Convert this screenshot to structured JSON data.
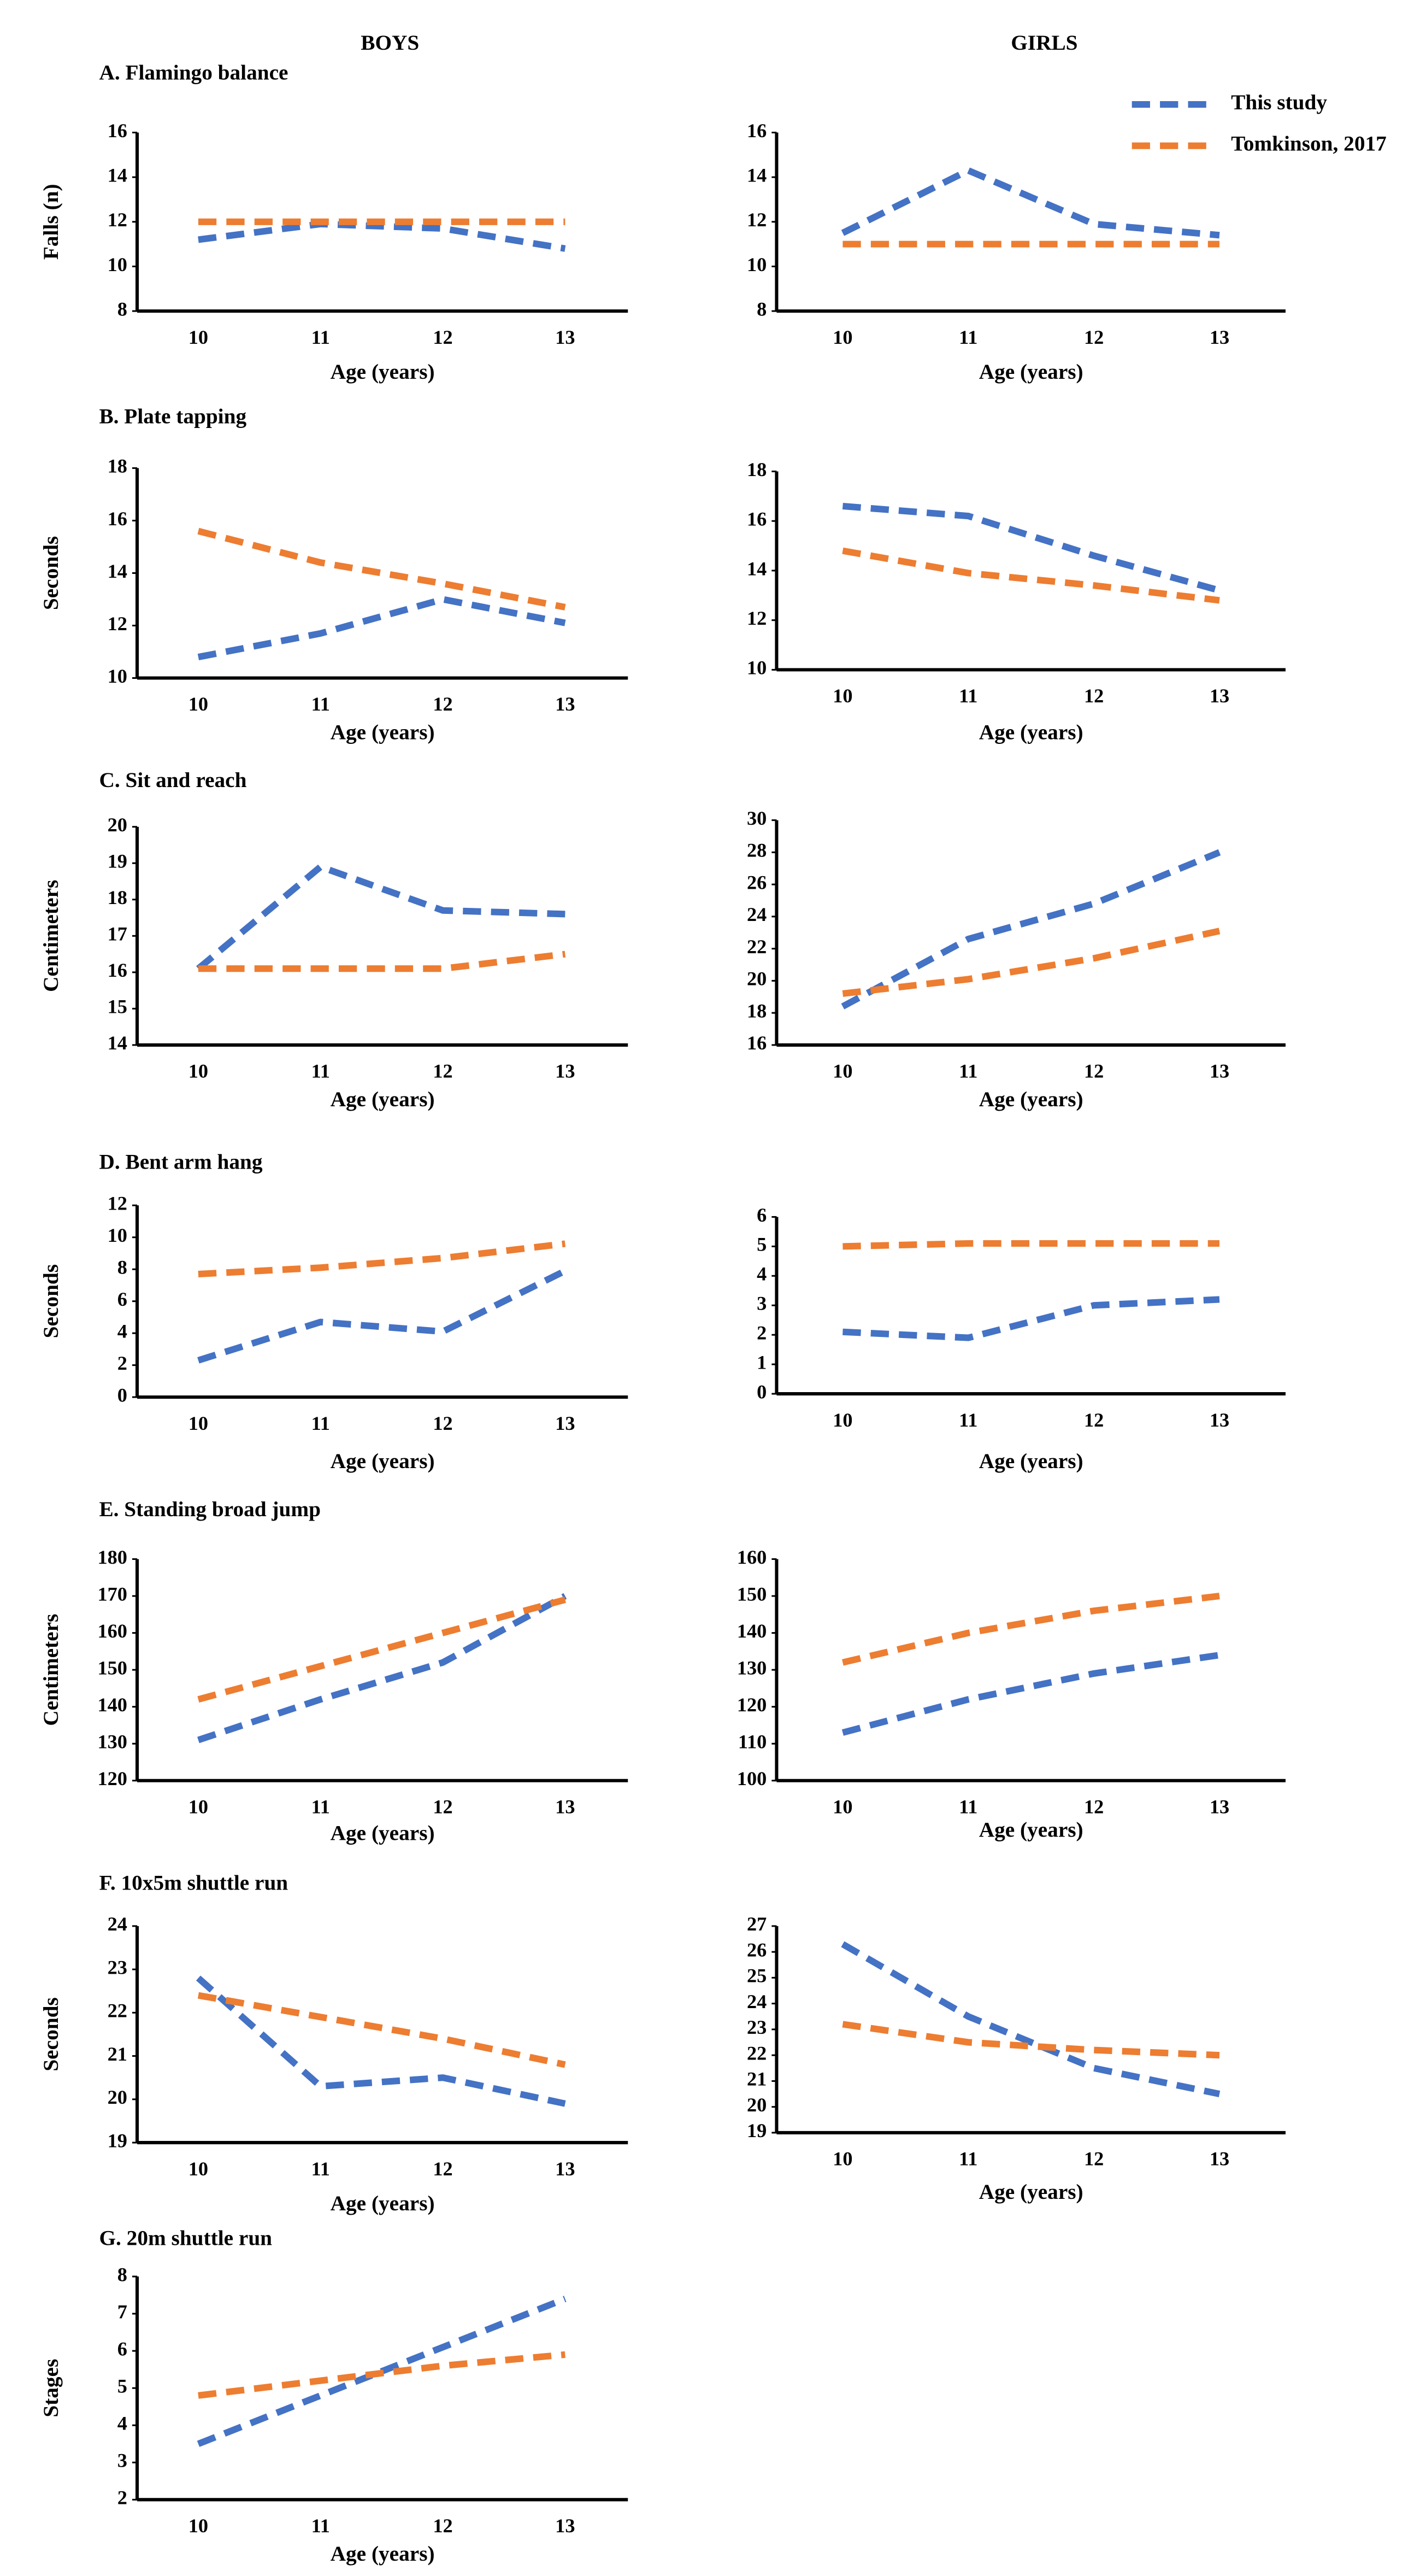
{
  "column_headers": [
    "BOYS",
    "GIRLS"
  ],
  "chart_data": [
    {
      "type": "line",
      "title": "A. Flamingo balance",
      "y_label": "Falls (n)",
      "x_label": "Age (years)",
      "categories": [
        "10",
        "11",
        "12",
        "13"
      ],
      "ylim": [
        8,
        16
      ],
      "yticks": [
        8,
        10,
        12,
        14,
        16
      ],
      "series": [
        {
          "color": "#4472c4",
          "values": [
            11.2,
            11.9,
            11.7,
            10.8
          ]
        },
        {
          "color": "#ed7d31",
          "values": [
            12,
            12,
            12,
            12
          ]
        }
      ]
    },
    {
      "type": "line",
      "x_label": "Age (years)",
      "categories": [
        "10",
        "11",
        "12",
        "13"
      ],
      "ylim": [
        8,
        16
      ],
      "yticks": [
        8,
        10,
        12,
        14,
        16
      ],
      "legend": "upper right",
      "series": [
        {
          "name": "This study",
          "color": "#4472c4",
          "values": [
            11.5,
            14.3,
            11.9,
            11.4
          ]
        },
        {
          "name": "Tomkinson, 2017",
          "color": "#ed7d31",
          "values": [
            11,
            11,
            11,
            11
          ]
        }
      ]
    },
    {
      "type": "line",
      "title": "B. Plate tapping",
      "y_label": "Seconds",
      "x_label": "Age (years)",
      "categories": [
        "10",
        "11",
        "12",
        "13"
      ],
      "ylim": [
        10,
        18
      ],
      "yticks": [
        10,
        12,
        14,
        16,
        18
      ],
      "series": [
        {
          "color": "#4472c4",
          "values": [
            10.8,
            11.7,
            13.0,
            12.1
          ]
        },
        {
          "color": "#ed7d31",
          "values": [
            15.6,
            14.4,
            13.6,
            12.7
          ]
        }
      ]
    },
    {
      "type": "line",
      "x_label": "Age (years)",
      "categories": [
        "10",
        "11",
        "12",
        "13"
      ],
      "ylim": [
        10,
        18
      ],
      "yticks": [
        10,
        12,
        14,
        16,
        18
      ],
      "series": [
        {
          "color": "#4472c4",
          "values": [
            16.6,
            16.2,
            14.6,
            13.2
          ]
        },
        {
          "color": "#ed7d31",
          "values": [
            14.8,
            13.9,
            13.4,
            12.8
          ]
        }
      ]
    },
    {
      "type": "line",
      "title": "C. Sit and reach",
      "y_label": "Centimeters",
      "x_label": "Age (years)",
      "categories": [
        "10",
        "11",
        "12",
        "13"
      ],
      "ylim": [
        14,
        20
      ],
      "yticks": [
        14,
        15,
        16,
        17,
        18,
        19,
        20
      ],
      "series": [
        {
          "color": "#4472c4",
          "values": [
            16.1,
            18.9,
            17.7,
            17.6
          ]
        },
        {
          "color": "#ed7d31",
          "values": [
            16.1,
            16.1,
            16.1,
            16.5
          ]
        }
      ]
    },
    {
      "type": "line",
      "x_label": "Age (years)",
      "categories": [
        "10",
        "11",
        "12",
        "13"
      ],
      "ylim": [
        16,
        30
      ],
      "yticks": [
        16,
        18,
        20,
        22,
        24,
        26,
        28,
        30
      ],
      "series": [
        {
          "color": "#4472c4",
          "values": [
            18.4,
            22.6,
            24.8,
            28.0
          ]
        },
        {
          "color": "#ed7d31",
          "values": [
            19.2,
            20.1,
            21.4,
            23.1
          ]
        }
      ]
    },
    {
      "type": "line",
      "title": "D. Bent arm hang",
      "y_label": "Seconds",
      "x_label": "Age (years)",
      "categories": [
        "10",
        "11",
        "12",
        "13"
      ],
      "ylim": [
        0,
        12
      ],
      "yticks": [
        0,
        2,
        4,
        6,
        8,
        10,
        12
      ],
      "series": [
        {
          "color": "#4472c4",
          "values": [
            2.3,
            4.7,
            4.1,
            7.9
          ]
        },
        {
          "color": "#ed7d31",
          "values": [
            7.7,
            8.1,
            8.7,
            9.6
          ]
        }
      ]
    },
    {
      "type": "line",
      "x_label": "Age (years)",
      "categories": [
        "10",
        "11",
        "12",
        "13"
      ],
      "ylim": [
        0,
        6
      ],
      "yticks": [
        0,
        1,
        2,
        3,
        4,
        5,
        6
      ],
      "series": [
        {
          "color": "#4472c4",
          "values": [
            2.1,
            1.9,
            3.0,
            3.2
          ]
        },
        {
          "color": "#ed7d31",
          "values": [
            5.0,
            5.1,
            5.1,
            5.1
          ]
        }
      ]
    },
    {
      "type": "line",
      "title": "E. Standing broad jump",
      "y_label": "Centimeters",
      "x_label": "Age (years)",
      "categories": [
        "10",
        "11",
        "12",
        "13"
      ],
      "ylim": [
        120,
        180
      ],
      "yticks": [
        120,
        130,
        140,
        150,
        160,
        170,
        180
      ],
      "series": [
        {
          "color": "#4472c4",
          "values": [
            131,
            142,
            152,
            170
          ]
        },
        {
          "color": "#ed7d31",
          "values": [
            142,
            151,
            160,
            169
          ]
        }
      ]
    },
    {
      "type": "line",
      "x_label": "Age (years)",
      "categories": [
        "10",
        "11",
        "12",
        "13"
      ],
      "ylim": [
        100,
        160
      ],
      "yticks": [
        100,
        110,
        120,
        130,
        140,
        150,
        160
      ],
      "series": [
        {
          "color": "#4472c4",
          "values": [
            113,
            122,
            129,
            134
          ]
        },
        {
          "color": "#ed7d31",
          "values": [
            132,
            140,
            146,
            150
          ]
        }
      ]
    },
    {
      "type": "line",
      "title": "F. 10x5m shuttle run",
      "y_label": "Seconds",
      "x_label": "Age (years)",
      "categories": [
        "10",
        "11",
        "12",
        "13"
      ],
      "ylim": [
        19,
        24
      ],
      "yticks": [
        19,
        20,
        21,
        22,
        23,
        24
      ],
      "series": [
        {
          "color": "#4472c4",
          "values": [
            22.8,
            20.3,
            20.5,
            19.9
          ]
        },
        {
          "color": "#ed7d31",
          "values": [
            22.4,
            21.9,
            21.4,
            20.8
          ]
        }
      ]
    },
    {
      "type": "line",
      "x_label": "Age (years)",
      "categories": [
        "10",
        "11",
        "12",
        "13"
      ],
      "ylim": [
        19,
        27
      ],
      "yticks": [
        19,
        20,
        21,
        22,
        23,
        24,
        25,
        26,
        27
      ],
      "series": [
        {
          "color": "#4472c4",
          "values": [
            26.3,
            23.5,
            21.5,
            20.5
          ]
        },
        {
          "color": "#ed7d31",
          "values": [
            23.2,
            22.5,
            22.2,
            22.0
          ]
        }
      ]
    },
    {
      "type": "line",
      "title": "G. 20m shuttle run",
      "y_label": "Stages",
      "x_label": "Age (years)",
      "categories": [
        "10",
        "11",
        "12",
        "13"
      ],
      "ylim": [
        2,
        8
      ],
      "yticks": [
        2,
        3,
        4,
        5,
        6,
        7,
        8
      ],
      "series": [
        {
          "color": "#4472c4",
          "values": [
            3.5,
            4.8,
            6.1,
            7.4
          ]
        },
        {
          "color": "#ed7d31",
          "values": [
            4.8,
            5.2,
            5.6,
            5.9
          ]
        }
      ]
    }
  ]
}
